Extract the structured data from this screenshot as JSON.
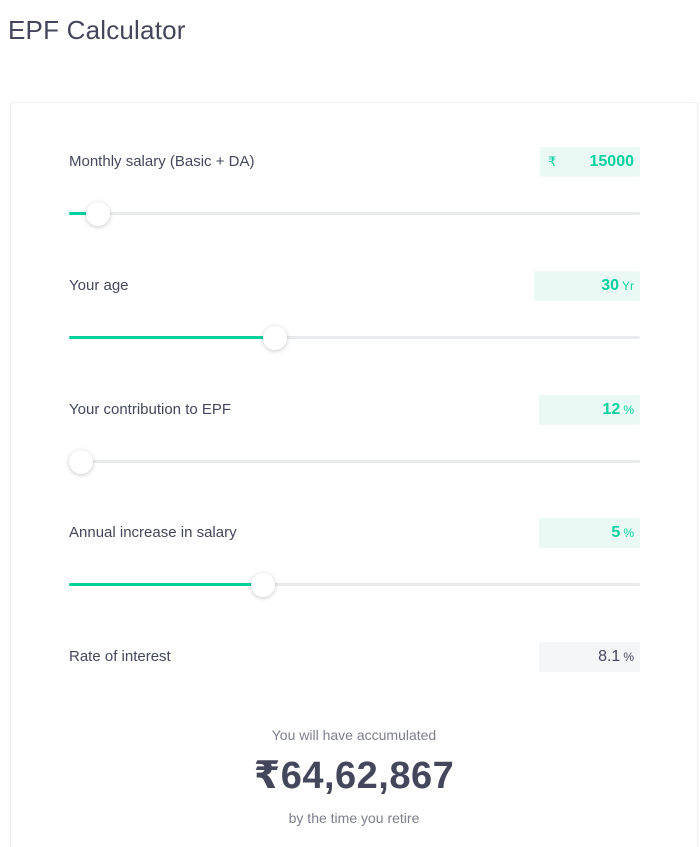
{
  "page": {
    "title": "EPF Calculator"
  },
  "calculator": {
    "monthly_salary": {
      "label": "Monthly salary (Basic + DA)",
      "currency_symbol": "₹",
      "value": "15000",
      "slider_fraction": 0.05
    },
    "age": {
      "label": "Your age",
      "value": "30",
      "unit": "Yr",
      "slider_fraction": 0.36
    },
    "contribution": {
      "label": "Your contribution to EPF",
      "value": "12",
      "unit": "%",
      "slider_fraction": 0.0
    },
    "salary_increase": {
      "label": "Annual increase in salary",
      "value": "5",
      "unit": "%",
      "slider_fraction": 0.34
    },
    "interest": {
      "label": "Rate of interest",
      "value": "8.1",
      "unit": "%"
    }
  },
  "result": {
    "caption_top": "You will have accumulated",
    "amount": "₹64,62,867",
    "caption_bottom": "by the time you retire"
  },
  "colors": {
    "accent": "#00d09c",
    "accent_bg": "#ebf9f5",
    "text": "#44475b",
    "muted": "#7c7e8c"
  }
}
